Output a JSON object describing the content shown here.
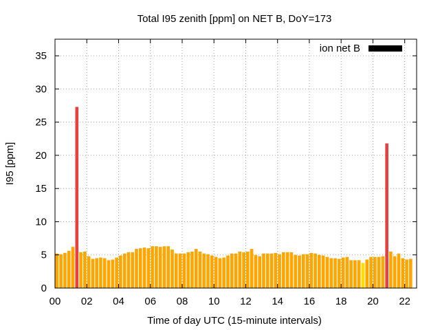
{
  "chart_data": {
    "type": "bar",
    "title": "Total I95 zenith [ppm] on NET B, DoY=173",
    "xlabel": "Time of day UTC (15-minute intervals)",
    "ylabel": "I95 [ppm]",
    "ylim": [
      0,
      37.5
    ],
    "yticks": [
      0,
      5,
      10,
      15,
      20,
      25,
      30,
      35
    ],
    "xlim": [
      0,
      22.75
    ],
    "xticks": [
      0,
      2,
      4,
      6,
      8,
      10,
      12,
      14,
      16,
      18,
      20,
      22
    ],
    "xtick_labels": [
      "00",
      "02",
      "04",
      "06",
      "08",
      "10",
      "12",
      "14",
      "16",
      "18",
      "20",
      "22"
    ],
    "grid": true,
    "legend": {
      "label": "ion net B",
      "position": "top-right",
      "color": "#000000"
    },
    "colors": {
      "normal": "#ffa500",
      "elevated": "#ffdd00",
      "high": "#e84040"
    },
    "series": [
      {
        "name": "ion net B",
        "bin_hours": 0.25,
        "values": [
          5.2,
          5.1,
          5.3,
          5.6,
          6.2,
          27.3,
          5.4,
          5.5,
          4.8,
          4.4,
          4.5,
          4.6,
          4.5,
          4.2,
          4.3,
          4.6,
          4.9,
          5.2,
          5.4,
          5.4,
          5.9,
          6.0,
          6.1,
          6.0,
          6.3,
          6.3,
          6.2,
          6.3,
          6.3,
          5.8,
          5.2,
          5.2,
          5.2,
          5.4,
          5.5,
          5.9,
          5.5,
          5.2,
          5.1,
          4.9,
          4.7,
          4.5,
          4.6,
          4.9,
          5.2,
          5.2,
          5.5,
          5.4,
          5.5,
          5.9,
          5.0,
          4.8,
          5.2,
          5.2,
          5.2,
          5.3,
          5.1,
          5.4,
          5.4,
          5.4,
          5.0,
          4.9,
          5.1,
          5.1,
          5.3,
          5.2,
          5.0,
          4.9,
          4.7,
          4.5,
          4.5,
          4.4,
          4.6,
          4.7,
          4.2,
          4.2,
          4.2,
          3.8,
          4.3,
          4.7,
          4.7,
          4.7,
          4.8,
          21.8,
          5.5,
          4.8,
          5.2,
          4.5,
          4.3,
          4.4
        ],
        "color_levels": [
          "normal",
          "normal",
          "normal",
          "normal",
          "normal",
          "high",
          "normal",
          "normal",
          "normal",
          "normal",
          "normal",
          "normal",
          "normal",
          "normal",
          "normal",
          "normal",
          "normal",
          "normal",
          "normal",
          "normal",
          "normal",
          "normal",
          "normal",
          "normal",
          "normal",
          "normal",
          "normal",
          "normal",
          "normal",
          "normal",
          "normal",
          "normal",
          "normal",
          "normal",
          "normal",
          "normal",
          "normal",
          "normal",
          "normal",
          "normal",
          "normal",
          "normal",
          "normal",
          "normal",
          "normal",
          "normal",
          "normal",
          "normal",
          "normal",
          "normal",
          "normal",
          "normal",
          "normal",
          "normal",
          "normal",
          "normal",
          "normal",
          "normal",
          "normal",
          "normal",
          "normal",
          "normal",
          "normal",
          "normal",
          "normal",
          "normal",
          "normal",
          "normal",
          "normal",
          "normal",
          "normal",
          "normal",
          "normal",
          "normal",
          "normal",
          "normal",
          "normal",
          "elevated",
          "normal",
          "normal",
          "normal",
          "normal",
          "normal",
          "high",
          "normal",
          "normal",
          "normal",
          "normal",
          "normal",
          "normal"
        ]
      }
    ]
  }
}
